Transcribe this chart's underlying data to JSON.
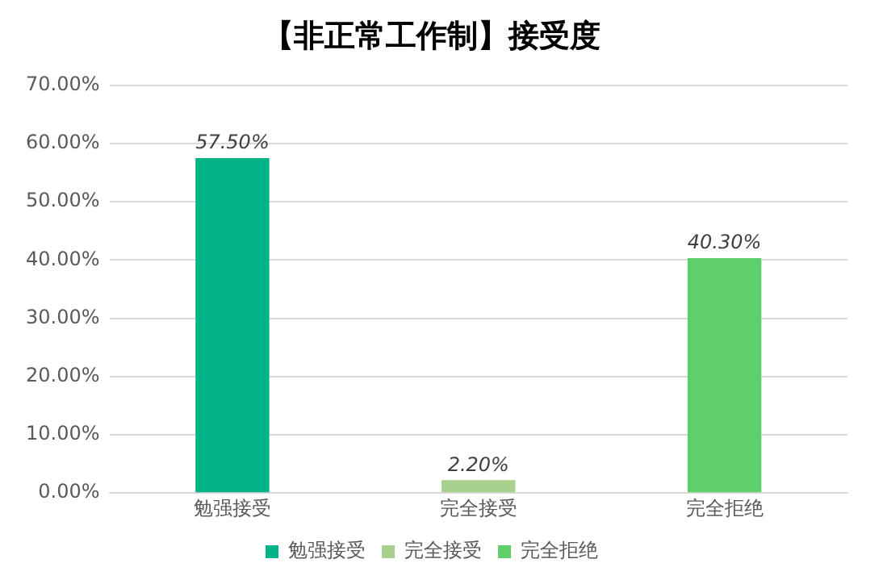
{
  "chart_data": {
    "type": "bar",
    "title": "【非正常工作制】接受度",
    "categories": [
      "勉强接受",
      "完全接受",
      "完全拒绝"
    ],
    "series": [
      {
        "name": "勉强接受",
        "color": "#00b386",
        "values": [
          57.5,
          null,
          null
        ],
        "value_labels": [
          "57.50%",
          null,
          null
        ]
      },
      {
        "name": "完全接受",
        "color": "#a9d18e",
        "values": [
          null,
          2.2,
          null
        ],
        "value_labels": [
          null,
          "2.20%",
          null
        ]
      },
      {
        "name": "完全拒绝",
        "color": "#5fcf6b",
        "values": [
          null,
          null,
          40.3
        ],
        "value_labels": [
          null,
          null,
          "40.30%"
        ]
      }
    ],
    "ylim": [
      0,
      70
    ],
    "yticks": [
      {
        "value": 0,
        "label": "0.00%"
      },
      {
        "value": 10,
        "label": "10.00%"
      },
      {
        "value": 20,
        "label": "20.00%"
      },
      {
        "value": 30,
        "label": "30.00%"
      },
      {
        "value": 40,
        "label": "40.00%"
      },
      {
        "value": 50,
        "label": "50.00%"
      },
      {
        "value": 60,
        "label": "60.00%"
      },
      {
        "value": 70,
        "label": "70.00%"
      }
    ],
    "grid": "y",
    "legend": "bottom"
  }
}
